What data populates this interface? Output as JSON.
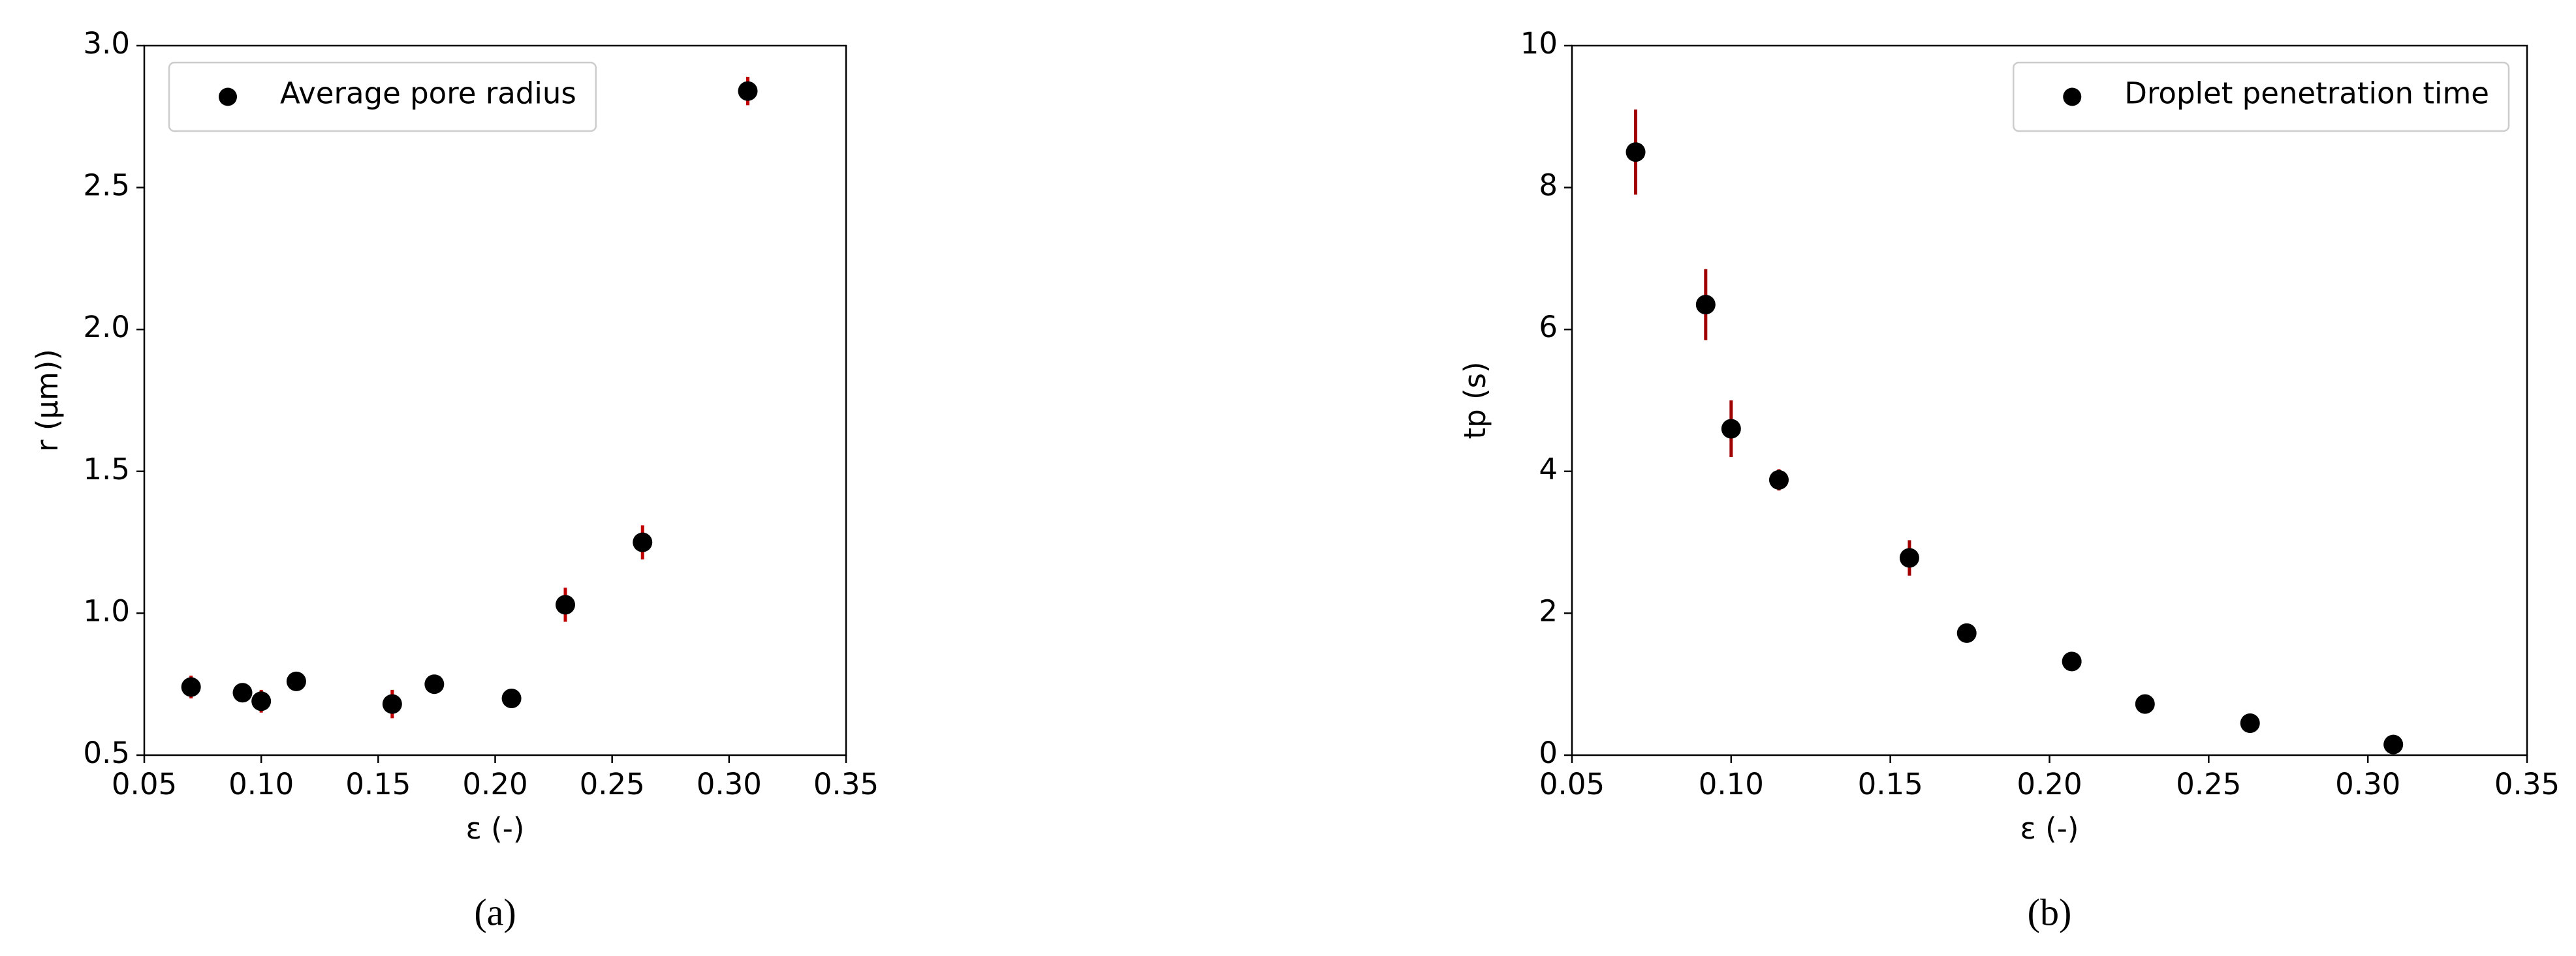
{
  "chart_data": [
    {
      "type": "scatter",
      "caption": "(a)",
      "xlabel": "ε (-)",
      "ylabel": "r (μm))",
      "xlim": [
        0.05,
        0.35
      ],
      "ylim": [
        0.5,
        3.0
      ],
      "xticks": [
        0.05,
        {
          "value": 0.1,
          "label": "0.10"
        },
        0.15,
        {
          "value": 0.2,
          "label": "0.20"
        },
        0.25,
        {
          "value": 0.3,
          "label": "0.30"
        },
        0.35
      ],
      "yticks": [
        0.5,
        {
          "value": 1.0,
          "label": "1.0"
        },
        1.5,
        {
          "value": 2.0,
          "label": "2.0"
        },
        2.5,
        {
          "value": 3.0,
          "label": "3.0"
        }
      ],
      "legend": "upper left",
      "series": [
        {
          "name": "Average pore radius",
          "color": "#000000",
          "error_color": "#c00000",
          "x": [
            0.07,
            0.092,
            0.1,
            0.115,
            0.156,
            0.174,
            0.207,
            0.23,
            0.263,
            0.308
          ],
          "values": [
            0.74,
            0.72,
            0.69,
            0.76,
            0.68,
            0.75,
            0.7,
            1.03,
            1.25,
            2.84
          ],
          "errors": [
            0.04,
            0.03,
            0.04,
            0.02,
            0.05,
            0.02,
            0.02,
            0.06,
            0.06,
            0.05
          ]
        }
      ]
    },
    {
      "type": "scatter",
      "caption": "(b)",
      "xlabel": "ε (-)",
      "ylabel": "tp (s)",
      "xlim": [
        0.05,
        0.35
      ],
      "ylim": [
        0,
        10
      ],
      "xticks": [
        0.05,
        {
          "value": 0.1,
          "label": "0.10"
        },
        0.15,
        {
          "value": 0.2,
          "label": "0.20"
        },
        0.25,
        {
          "value": 0.3,
          "label": "0.30"
        },
        0.35
      ],
      "yticks": [
        0,
        2,
        4,
        6,
        8,
        10
      ],
      "legend": "upper right",
      "series": [
        {
          "name": "Droplet penetration time",
          "color": "#000000",
          "error_color": "#a00000",
          "x": [
            0.07,
            0.092,
            0.1,
            0.115,
            0.156,
            0.174,
            0.207,
            0.23,
            0.263,
            0.308
          ],
          "values": [
            8.5,
            6.35,
            4.6,
            3.88,
            2.78,
            1.72,
            1.32,
            0.72,
            0.45,
            0.15
          ],
          "errors": [
            0.6,
            0.5,
            0.4,
            0.15,
            0.25,
            0.05,
            0.05,
            0.05,
            0.05,
            0.02
          ]
        }
      ]
    }
  ]
}
